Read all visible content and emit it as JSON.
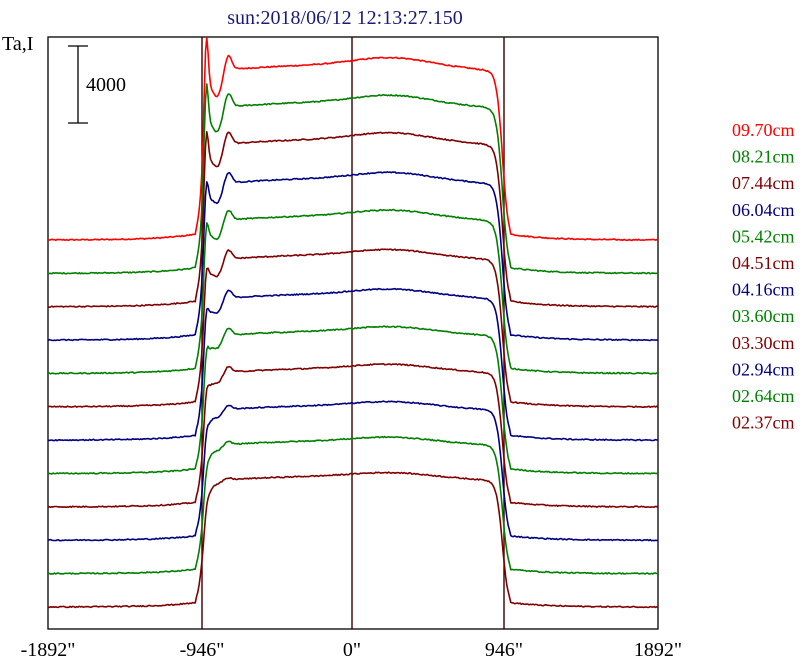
{
  "chart_data": {
    "type": "line",
    "title": "sun:2018/06/12 12:13:27.150",
    "ylabel": "Ta,I",
    "scale_bar_label": "4000",
    "scale_bar_value": 4000,
    "x_ticks": [
      {
        "value": -1892,
        "label": "-1892\""
      },
      {
        "value": -946,
        "label": "-946\""
      },
      {
        "value": 0,
        "label": "0\""
      },
      {
        "value": 946,
        "label": "946\""
      },
      {
        "value": 1892,
        "label": "1892\""
      }
    ],
    "xlim": [
      -1892,
      1892
    ],
    "vertical_lines": [
      -946,
      0,
      946
    ],
    "grid": false,
    "legend_position": "right",
    "series": [
      {
        "name": "09.70cm",
        "color": "#ff0000",
        "baseline": 0,
        "plateau": 9100,
        "spike": 4200,
        "dip": 1300,
        "hump": 400
      },
      {
        "name": "08.21cm",
        "color": "#008000",
        "baseline": 0,
        "plateau": 8900,
        "spike": 3600,
        "dip": 1200,
        "hump": 380
      },
      {
        "name": "07.44cm",
        "color": "#800000",
        "baseline": 0,
        "plateau": 8700,
        "spike": 3000,
        "dip": 1100,
        "hump": 360
      },
      {
        "name": "06.04cm",
        "color": "#000080",
        "baseline": 0,
        "plateau": 8400,
        "spike": 2300,
        "dip": 950,
        "hump": 330
      },
      {
        "name": "05.42cm",
        "color": "#008000",
        "baseline": 0,
        "plateau": 8200,
        "spike": 2000,
        "dip": 900,
        "hump": 310
      },
      {
        "name": "04.51cm",
        "color": "#800000",
        "baseline": 0,
        "plateau": 7900,
        "spike": 1600,
        "dip": 800,
        "hump": 290
      },
      {
        "name": "04.16cm",
        "color": "#000080",
        "baseline": 0,
        "plateau": 7600,
        "spike": 1400,
        "dip": 700,
        "hump": 270
      },
      {
        "name": "03.60cm",
        "color": "#008000",
        "baseline": 0,
        "plateau": 7400,
        "spike": 1200,
        "dip": 600,
        "hump": 250
      },
      {
        "name": "03.30cm",
        "color": "#800000",
        "baseline": 0,
        "plateau": 7200,
        "spike": 1000,
        "dip": 500,
        "hump": 230
      },
      {
        "name": "02.94cm",
        "color": "#000080",
        "baseline": 0,
        "plateau": 7000,
        "spike": 700,
        "dip": 350,
        "hump": 220
      },
      {
        "name": "02.64cm",
        "color": "#008000",
        "baseline": 0,
        "plateau": 6900,
        "spike": 500,
        "dip": 250,
        "hump": 210
      },
      {
        "name": "02.37cm",
        "color": "#800000",
        "baseline": 0,
        "plateau": 6800,
        "spike": 400,
        "dip": 150,
        "hump": 200
      }
    ]
  }
}
